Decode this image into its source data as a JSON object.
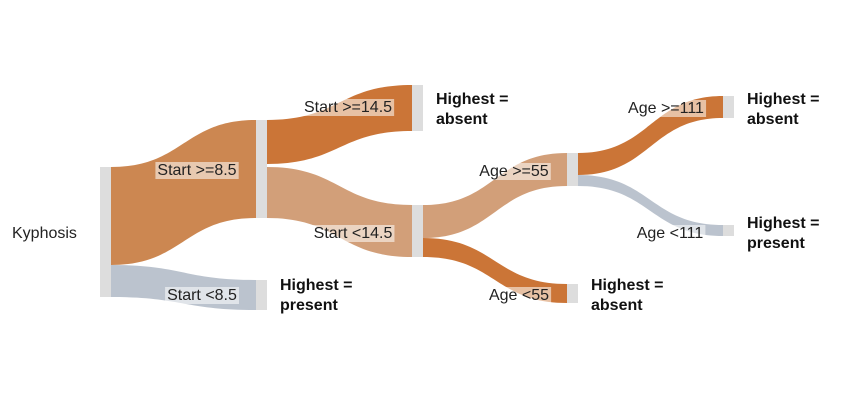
{
  "colors": {
    "absent": "#c86e2c",
    "absent_light": "#d09a72",
    "present": "#b7c0cb",
    "mixed": "#c98148",
    "node_bar": "#dddddd",
    "label_bg": "#ffffff"
  },
  "chart_data": {
    "type": "sankey",
    "title": "",
    "root_label": "Kyphosis",
    "nodes": {
      "root": {
        "label": "Kyphosis"
      },
      "s85": {
        "label": "Start >=8.5"
      },
      "slt85": {
        "label": "Start <8.5",
        "leaf": "Highest =|present"
      },
      "s145": {
        "label": "Start >=14.5",
        "leaf": "Highest =|absent"
      },
      "slt145": {
        "label": "Start <14.5"
      },
      "a55": {
        "label": "Age >=55"
      },
      "alt55": {
        "label": "Age <55",
        "leaf": "Highest =|absent"
      },
      "a111": {
        "label": "Age >=111",
        "leaf": "Highest =|absent"
      },
      "alt111": {
        "label": "Age <111",
        "leaf": "Highest =|present"
      }
    },
    "links": [
      {
        "from": "root",
        "to": "s85",
        "value": 62,
        "class": "mixed"
      },
      {
        "from": "root",
        "to": "slt85",
        "value": 19,
        "class": "present"
      },
      {
        "from": "s85",
        "to": "s145",
        "value": 29,
        "class": "absent"
      },
      {
        "from": "s85",
        "to": "slt145",
        "value": 33,
        "class": "absent_light"
      },
      {
        "from": "slt145",
        "to": "a55",
        "value": 21,
        "class": "absent_light"
      },
      {
        "from": "slt145",
        "to": "alt55",
        "value": 12,
        "class": "absent"
      },
      {
        "from": "a55",
        "to": "a111",
        "value": 14,
        "class": "absent"
      },
      {
        "from": "a55",
        "to": "alt111",
        "value": 7,
        "class": "present"
      }
    ]
  }
}
